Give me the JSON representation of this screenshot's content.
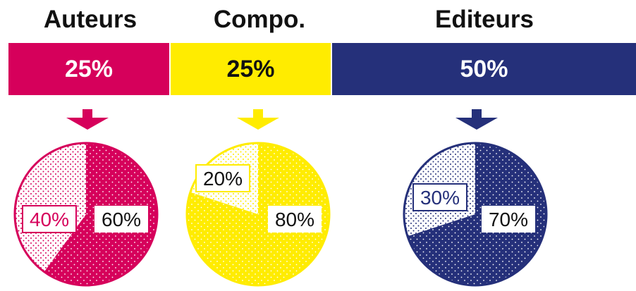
{
  "chart_data": {
    "type": "pie",
    "groups": [
      {
        "title": "Auteurs",
        "share": 25,
        "share_label": "25%",
        "color": "#D6005B",
        "band_text_color": "#ffffff",
        "slices": [
          {
            "value": 60,
            "label": "60%",
            "style": "solid"
          },
          {
            "value": 40,
            "label": "40%",
            "style": "light"
          }
        ]
      },
      {
        "title": "Compo.",
        "share": 25,
        "share_label": "25%",
        "color": "#FFEC00",
        "band_text_color": "#111111",
        "slices": [
          {
            "value": 80,
            "label": "80%",
            "style": "solid"
          },
          {
            "value": 20,
            "label": "20%",
            "style": "light"
          }
        ]
      },
      {
        "title": "Editeurs",
        "share": 50,
        "share_label": "50%",
        "color": "#25307A",
        "band_text_color": "#ffffff",
        "slices": [
          {
            "value": 70,
            "label": "70%",
            "style": "solid"
          },
          {
            "value": 30,
            "label": "30%",
            "style": "light"
          }
        ]
      }
    ]
  }
}
